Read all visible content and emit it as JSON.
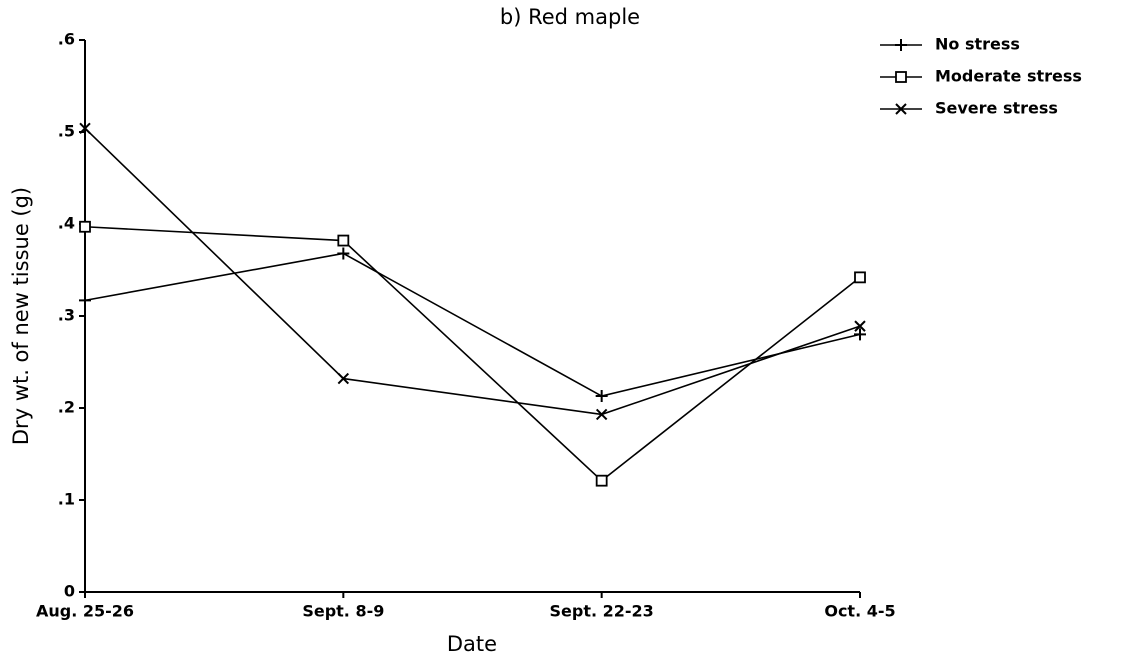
{
  "chart_data": {
    "type": "line",
    "title": "b)  Red maple",
    "xlabel": "Date",
    "ylabel": "Dry wt. of new tissue (g)",
    "categories": [
      "Aug. 25-26",
      "Sept. 8-9",
      "Sept. 22-23",
      "Oct. 4-5"
    ],
    "series": [
      {
        "name": "No stress",
        "color": "#000000",
        "marker": "plus",
        "values": [
          0.317,
          0.368,
          0.213,
          0.28
        ]
      },
      {
        "name": "Moderate stress",
        "color": "#000000",
        "marker": "square",
        "values": [
          0.397,
          0.382,
          0.121,
          0.342
        ]
      },
      {
        "name": "Severe stress",
        "color": "#000000",
        "marker": "x",
        "values": [
          0.504,
          0.232,
          0.193,
          0.289
        ]
      }
    ],
    "ylim": [
      0,
      0.6
    ],
    "yticks": [
      0,
      {
        "value": 0.1,
        "label": ".1"
      },
      {
        "value": 0.2,
        "label": ".2"
      },
      {
        "value": 0.3,
        "label": ".3"
      },
      {
        "value": 0.4,
        "label": ".4"
      },
      {
        "value": 0.5,
        "label": ".5"
      },
      {
        "value": 0.6,
        "label": ".6"
      }
    ],
    "legend": "top-right",
    "grid": false
  }
}
